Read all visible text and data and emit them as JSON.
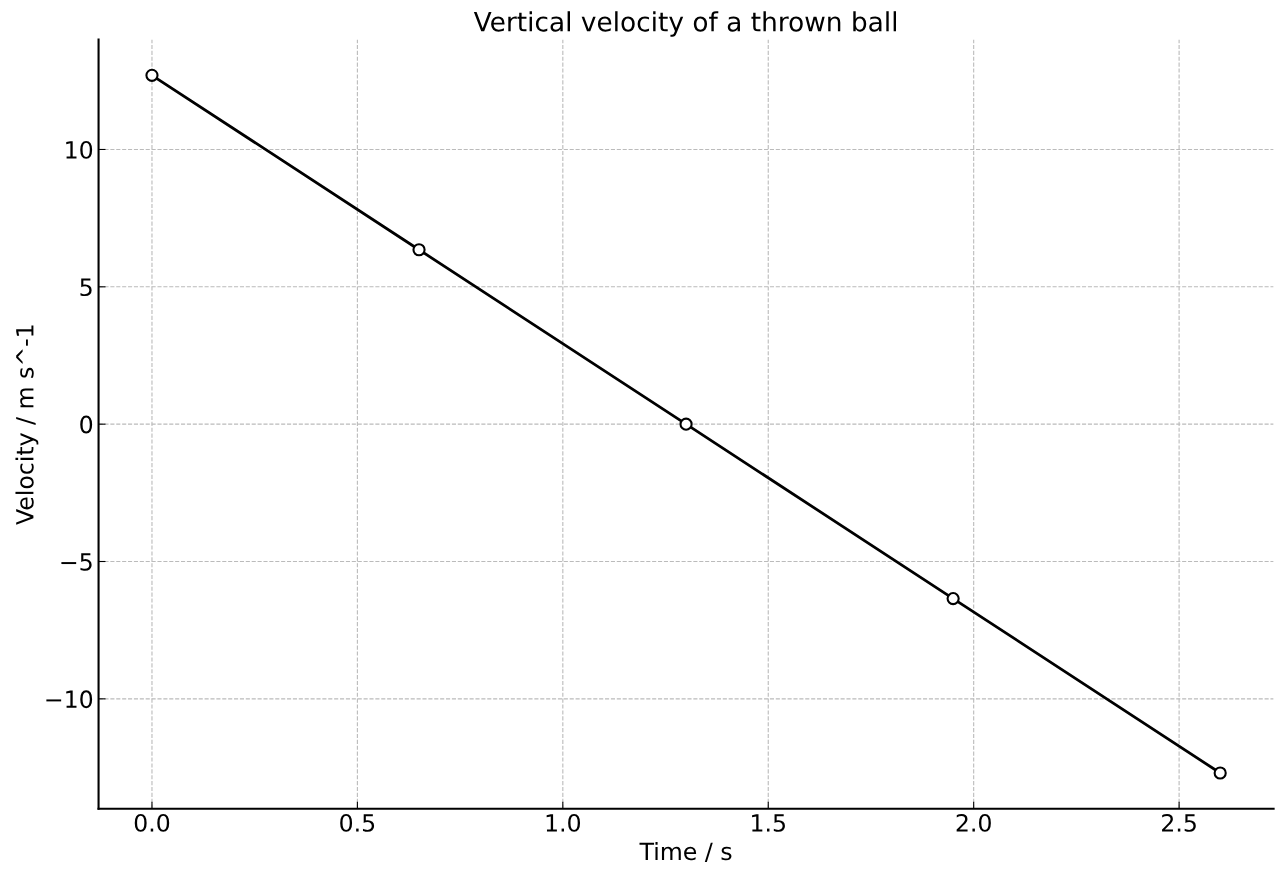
{
  "chart_data": {
    "type": "line",
    "title": "Vertical velocity of a thrown ball",
    "xlabel": "Time / s",
    "ylabel": "Velocity / m s^-1",
    "x": [
      0,
      0.65,
      1.3,
      1.95,
      2.6
    ],
    "series": [
      {
        "color": "#000000",
        "values": [
          12.7,
          6.35,
          0,
          -6.35,
          -12.7
        ]
      }
    ],
    "marker": "circle",
    "line_style": "solid",
    "grid": true,
    "xlim": [
      -0.13,
      2.73
    ],
    "ylim": [
      -14,
      14
    ],
    "xticks": [
      {
        "value": 0,
        "label": "0.0"
      },
      {
        "value": 0.5,
        "label": "0.5"
      },
      {
        "value": 1,
        "label": "1.0"
      },
      {
        "value": 1.5,
        "label": "1.5"
      },
      {
        "value": 2,
        "label": "2.0"
      },
      {
        "value": 2.5,
        "label": "2.5"
      }
    ],
    "yticks": [
      {
        "value": -10,
        "label": "−10"
      },
      {
        "value": -5,
        "label": "−5"
      },
      {
        "value": 0,
        "label": "0"
      },
      {
        "value": 5,
        "label": "5"
      },
      {
        "value": 10,
        "label": "10"
      }
    ]
  }
}
